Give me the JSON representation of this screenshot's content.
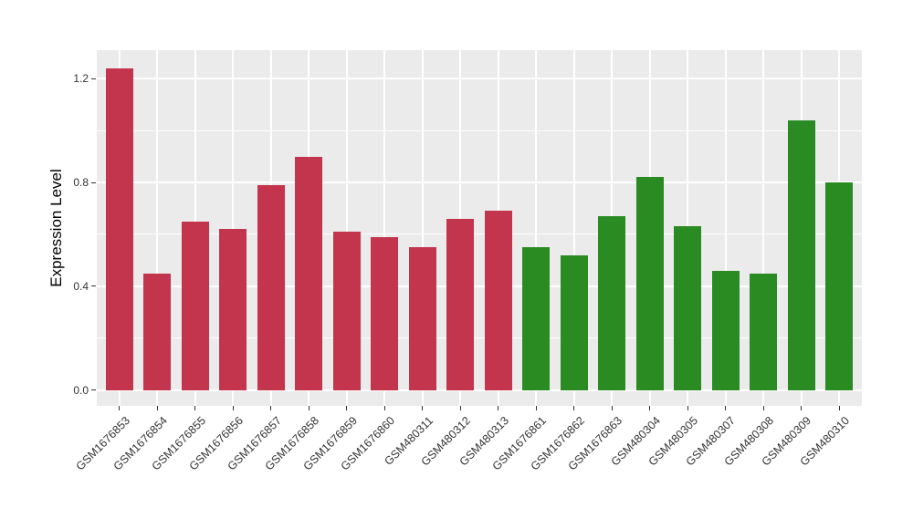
{
  "chart_data": {
    "type": "bar",
    "title": "",
    "xlabel": "",
    "ylabel": "Expression Level",
    "categories": [
      "GSM1676853",
      "GSM1676854",
      "GSM1676855",
      "GSM1676856",
      "GSM1676857",
      "GSM1676858",
      "GSM1676859",
      "GSM1676860",
      "GSM480311",
      "GSM480312",
      "GSM480313",
      "GSM1676861",
      "GSM1676862",
      "GSM1676863",
      "GSM480304",
      "GSM480305",
      "GSM480307",
      "GSM480308",
      "GSM480309",
      "GSM480310"
    ],
    "values": [
      1.24,
      0.45,
      0.65,
      0.62,
      0.79,
      0.9,
      0.61,
      0.59,
      0.55,
      0.66,
      0.69,
      0.55,
      0.52,
      0.67,
      0.82,
      0.63,
      0.46,
      0.45,
      1.04,
      0.8
    ],
    "bar_groups": [
      "red",
      "red",
      "red",
      "red",
      "red",
      "red",
      "red",
      "red",
      "red",
      "red",
      "red",
      "green",
      "green",
      "green",
      "green",
      "green",
      "green",
      "green",
      "green",
      "green"
    ],
    "group_colors": {
      "red": "#C3344D",
      "green": "#2A8B22"
    },
    "ylim": [
      -0.06,
      1.309
    ],
    "yticks": [
      {
        "value": 0.0,
        "label": "0.0"
      },
      {
        "value": 0.4,
        "label": "0.4"
      },
      {
        "value": 0.8,
        "label": "0.8"
      },
      {
        "value": 1.2,
        "label": "1.2"
      }
    ],
    "minor_yticks": [
      0.2,
      0.6,
      1.0
    ],
    "bar_width_fraction": 0.72,
    "legend": "none",
    "grid": "on",
    "style": {
      "panel_background": "#EBEBEB",
      "grid_color": "#FFFFFF",
      "tick_color": "#333333",
      "tick_label_color": "#333333",
      "axis_title_color": "#000000"
    }
  }
}
